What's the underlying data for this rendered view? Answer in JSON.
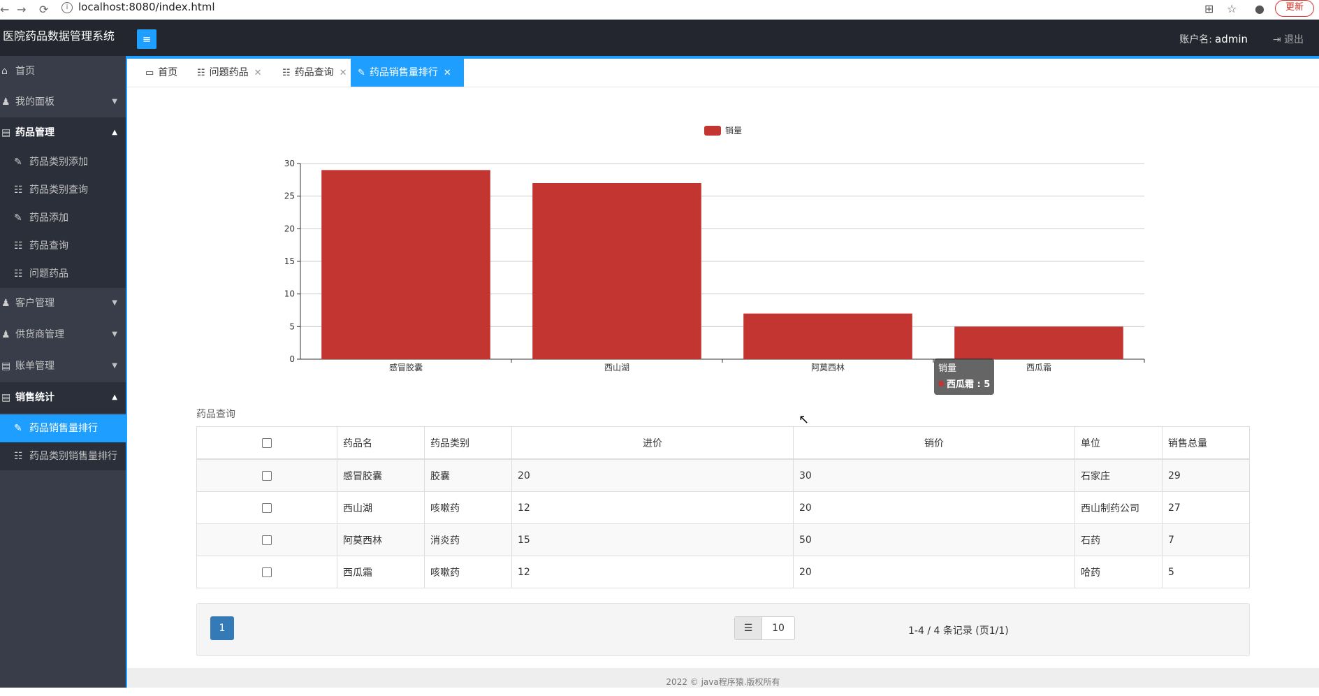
{
  "browser": {
    "url": "localhost:8080/index.html",
    "update_label": "更新"
  },
  "header": {
    "title": "医院药品数据管理系统",
    "account_label": "账户名:",
    "account_user": "admin",
    "logout_label": "退出"
  },
  "sidebar": {
    "home": "首页",
    "my_panel": "我的面板",
    "drug_mgmt": "药品管理",
    "drug_items": [
      "药品类别添加",
      "药品类别查询",
      "药品添加",
      "药品查询",
      "问题药品"
    ],
    "customer_mgmt": "客户管理",
    "supplier_mgmt": "供货商管理",
    "bill_mgmt": "账单管理",
    "sales_stats": "销售统计",
    "sales_items": [
      "药品销售量排行",
      "药品类别销售量排行"
    ]
  },
  "tabs": [
    {
      "label": "首页",
      "icon": "monitor-icon",
      "closable": false
    },
    {
      "label": "问题药品",
      "icon": "list-icon",
      "closable": true
    },
    {
      "label": "药品查询",
      "icon": "list-icon",
      "closable": true
    },
    {
      "label": "药品销售量排行",
      "icon": "edit-icon",
      "closable": true,
      "active": true
    }
  ],
  "chart_data": {
    "type": "bar",
    "categories": [
      "感冒胶囊",
      "西山湖",
      "阿莫西林",
      "西瓜霜"
    ],
    "series": [
      {
        "name": "销量",
        "values": [
          29,
          27,
          7,
          5
        ],
        "color": "#c23531"
      }
    ],
    "ylim": [
      0,
      30
    ],
    "yticks": [
      0,
      5,
      10,
      15,
      20,
      25,
      30
    ],
    "legend": "top-center",
    "grid": true,
    "tooltip": {
      "title": "销量",
      "item": "西瓜霜 : 5"
    }
  },
  "table": {
    "caption": "药品查询",
    "columns": [
      "药品名",
      "药品类别",
      "进价",
      "销价",
      "单位",
      "销售总量"
    ],
    "rows": [
      [
        "感冒胶囊",
        "胶囊",
        "20",
        "30",
        "石家庄",
        "29"
      ],
      [
        "西山湖",
        "咳嗽药",
        "12",
        "20",
        "西山制药公司",
        "27"
      ],
      [
        "阿莫西林",
        "消炎药",
        "15",
        "50",
        "石药",
        "7"
      ],
      [
        "西瓜霜",
        "咳嗽药",
        "12",
        "20",
        "哈药",
        "5"
      ]
    ]
  },
  "pagination": {
    "current_page": "1",
    "page_size": "10",
    "info": "1-4 / 4 条记录 (页1/1)"
  },
  "footer": {
    "copyright": "2022 © java程序猿.版权所有"
  }
}
